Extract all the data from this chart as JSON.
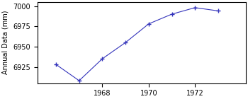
{
  "x": [
    1966,
    1967,
    1968,
    1969,
    1970,
    1971,
    1972,
    1973
  ],
  "y": [
    6928,
    6908,
    6935,
    6955,
    6978,
    6990,
    6998,
    6994
  ],
  "color": "#3333bb",
  "marker": "+",
  "markersize": 4,
  "markeredgewidth": 1.0,
  "linewidth": 0.8,
  "ylabel": "Annual Data (mm)",
  "ylabel_fontsize": 7,
  "xlim": [
    1965.2,
    1974.2
  ],
  "ylim": [
    6905,
    7005
  ],
  "xticks": [
    1968,
    1970,
    1972
  ],
  "yticks": [
    6925,
    6950,
    6975,
    7000
  ],
  "tick_fontsize": 7
}
